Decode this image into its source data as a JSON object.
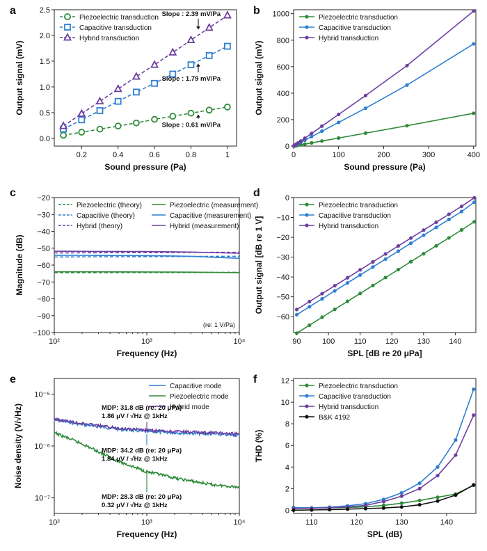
{
  "colors": {
    "piezo": "#2e8b3a",
    "cap": "#2f7fd0",
    "hybrid": "#6b3fa0",
    "bk": "#111111"
  },
  "chart_data": [
    {
      "panel": "a",
      "type": "line",
      "xlabel": "Sound pressure (Pa)",
      "ylabel": "Output signal (mV)",
      "xlim": [
        0.05,
        1.05
      ],
      "ylim": [
        -0.15,
        2.5
      ],
      "xticks": [
        0.2,
        0.4,
        0.6,
        0.8,
        1.0
      ],
      "yticks": [
        0.0,
        0.5,
        1.0,
        1.5,
        2.0,
        2.5
      ],
      "legend": "top-left",
      "series": [
        {
          "name": "Piezoelectric transduction",
          "color": "piezo",
          "marker": "circle",
          "dashed": true,
          "x": [
            0.1,
            0.2,
            0.3,
            0.4,
            0.5,
            0.6,
            0.7,
            0.8,
            0.9,
            1.0
          ],
          "y": [
            0.06,
            0.12,
            0.18,
            0.24,
            0.3,
            0.37,
            0.43,
            0.49,
            0.55,
            0.61
          ]
        },
        {
          "name": "Capacitive transduction",
          "color": "cap",
          "marker": "square",
          "dashed": true,
          "x": [
            0.1,
            0.2,
            0.3,
            0.4,
            0.5,
            0.6,
            0.7,
            0.8,
            0.9,
            1.0
          ],
          "y": [
            0.18,
            0.36,
            0.54,
            0.72,
            0.9,
            1.07,
            1.25,
            1.43,
            1.61,
            1.79
          ]
        },
        {
          "name": "Hybrid transduction",
          "color": "hybrid",
          "marker": "triangle",
          "dashed": true,
          "x": [
            0.1,
            0.2,
            0.3,
            0.4,
            0.5,
            0.6,
            0.7,
            0.8,
            0.9,
            1.0
          ],
          "y": [
            0.24,
            0.48,
            0.72,
            0.96,
            1.2,
            1.43,
            1.67,
            1.91,
            2.15,
            2.39
          ]
        }
      ],
      "annotations": [
        {
          "text": "Slope : 2.39 mV/Pa",
          "x": 0.64,
          "y": 2.38,
          "arrow_to": [
            0.84,
            2.12
          ]
        },
        {
          "text": "Slope : 1.79 mV/Pa",
          "x": 0.64,
          "y": 1.12,
          "arrow_to": [
            0.84,
            1.45
          ]
        },
        {
          "text": "Slope : 0.61 mV/Pa",
          "x": 0.64,
          "y": 0.22,
          "arrow_to": [
            0.84,
            0.46
          ]
        }
      ]
    },
    {
      "panel": "b",
      "type": "line",
      "xlabel": "Sound pressure (Pa)",
      "ylabel": "Output signal (mV)",
      "xlim": [
        0,
        405
      ],
      "ylim": [
        0,
        1030
      ],
      "xticks": [
        0,
        100,
        200,
        300,
        400
      ],
      "yticks": [
        0,
        200,
        400,
        600,
        800,
        1000
      ],
      "legend": "top-left",
      "series": [
        {
          "name": "Piezoelectric transduction",
          "color": "piezo",
          "marker": "dot",
          "x": [
            0.63,
            1,
            2,
            4,
            6.3,
            10,
            16,
            25,
            40,
            63,
            100,
            160,
            252,
            400
          ],
          "y": [
            0.38,
            0.6,
            1.2,
            2.4,
            3.9,
            6.1,
            9.8,
            15.3,
            24.4,
            38.4,
            61,
            98,
            154,
            248
          ]
        },
        {
          "name": "Capacitive transduction",
          "color": "cap",
          "marker": "dot",
          "x": [
            0.63,
            1,
            2,
            4,
            6.3,
            10,
            16,
            25,
            40,
            63,
            100,
            160,
            252,
            400
          ],
          "y": [
            1.1,
            1.8,
            3.6,
            7.2,
            11.3,
            17.9,
            28.6,
            44.8,
            71.6,
            113,
            179,
            286,
            461,
            772
          ]
        },
        {
          "name": "Hybrid transduction",
          "color": "hybrid",
          "marker": "dot",
          "x": [
            0.63,
            1,
            2,
            4,
            6.3,
            10,
            16,
            25,
            40,
            63,
            100,
            160,
            252,
            400
          ],
          "y": [
            1.5,
            2.4,
            4.8,
            9.6,
            15.1,
            23.9,
            38.2,
            59.8,
            95.6,
            151,
            239,
            382,
            608,
            1020
          ]
        }
      ]
    },
    {
      "panel": "c",
      "type": "line",
      "xlabel": "Frequency (Hz)",
      "ylabel": "Magnitude (dB)",
      "xscale": "log",
      "xlim": [
        100,
        10000
      ],
      "ylim": [
        -100,
        -20
      ],
      "xticks": [
        100,
        1000,
        10000
      ],
      "yticks": [
        -20,
        -30,
        -40,
        -50,
        -60,
        -70,
        -80,
        -90,
        -100
      ],
      "xticklabels": [
        "10²",
        "10³",
        "10⁴"
      ],
      "note": "(re: 1 V/Pa)",
      "legend": "top",
      "series": [
        {
          "name": "Piezoelectric (theory)",
          "color": "piezo",
          "dashed": true,
          "x": [
            100,
            300,
            1000,
            3000,
            10000
          ],
          "y": [
            -64.5,
            -64.5,
            -64.4,
            -64.4,
            -64.3
          ]
        },
        {
          "name": "Capacitive (theory)",
          "color": "cap",
          "dashed": true,
          "x": [
            100,
            300,
            1000,
            3000,
            10000
          ],
          "y": [
            -55.2,
            -55.1,
            -55.0,
            -54.9,
            -54.8
          ]
        },
        {
          "name": "Hybrid (theory)",
          "color": "hybrid",
          "dashed": true,
          "x": [
            100,
            300,
            1000,
            3000,
            10000
          ],
          "y": [
            -52.8,
            -52.7,
            -52.6,
            -52.5,
            -52.4
          ]
        },
        {
          "name": "Piezoelectric (measurement)",
          "color": "piezo",
          "x": [
            100,
            300,
            1000,
            3000,
            10000
          ],
          "y": [
            -64.0,
            -64.0,
            -64.1,
            -64.2,
            -64.5
          ]
        },
        {
          "name": "Capacitive (measurement)",
          "color": "cap",
          "x": [
            100,
            300,
            1000,
            3000,
            10000
          ],
          "y": [
            -54.2,
            -54.3,
            -54.4,
            -54.8,
            -56.0
          ]
        },
        {
          "name": "Hybrid (measurement)",
          "color": "hybrid",
          "x": [
            100,
            300,
            1000,
            3000,
            10000
          ],
          "y": [
            -51.8,
            -51.9,
            -52.0,
            -52.3,
            -53.0
          ]
        }
      ]
    },
    {
      "panel": "d",
      "type": "line",
      "xlabel": "SPL [dB re 20 μPa]",
      "ylabel": "Output signal [dB re 1 V]",
      "xlim": [
        89,
        146.5
      ],
      "ylim": [
        -68,
        0
      ],
      "xticks": [
        90,
        100,
        110,
        120,
        130,
        140
      ],
      "yticks": [
        0,
        -10,
        -20,
        -30,
        -40,
        -50,
        -60
      ],
      "legend": "top-left",
      "series": [
        {
          "name": "Piezoelectric transduction",
          "color": "piezo",
          "marker": "dot",
          "x": [
            90,
            94,
            98,
            102,
            106,
            110,
            114,
            118,
            122,
            126,
            130,
            134,
            138,
            142,
            146
          ],
          "y": [
            -68.3,
            -64.3,
            -60.3,
            -56.3,
            -52.3,
            -48.3,
            -44.3,
            -40.3,
            -36.3,
            -32.3,
            -28.3,
            -24.3,
            -20.3,
            -16.3,
            -12.2
          ]
        },
        {
          "name": "Capacitive transduction",
          "color": "cap",
          "marker": "dot",
          "x": [
            90,
            94,
            98,
            102,
            106,
            110,
            114,
            118,
            122,
            126,
            130,
            134,
            138,
            142,
            146
          ],
          "y": [
            -59.0,
            -55.0,
            -51.0,
            -47.0,
            -43.0,
            -39.0,
            -35.0,
            -31.0,
            -27.0,
            -23.0,
            -19.0,
            -15.0,
            -11.0,
            -7.0,
            -2.3
          ]
        },
        {
          "name": "Hybrid transduction",
          "color": "hybrid",
          "marker": "dot",
          "x": [
            90,
            94,
            98,
            102,
            106,
            110,
            114,
            118,
            122,
            126,
            130,
            134,
            138,
            142,
            146
          ],
          "y": [
            -56.4,
            -52.4,
            -48.4,
            -44.4,
            -40.4,
            -36.4,
            -32.4,
            -28.4,
            -24.4,
            -20.4,
            -16.4,
            -12.4,
            -8.4,
            -4.4,
            -0.1
          ]
        }
      ]
    },
    {
      "panel": "e",
      "type": "line",
      "xlabel": "Frequency (Hz)",
      "ylabel": "Noise density (V/√Hz)",
      "xscale": "log",
      "yscale": "log",
      "xlim": [
        100,
        10000
      ],
      "ylim": [
        5e-08,
        2e-05
      ],
      "xticks": [
        100,
        1000,
        10000
      ],
      "xticklabels": [
        "10²",
        "10³",
        "10⁴"
      ],
      "yticks": [
        1e-07,
        1e-06,
        1e-05
      ],
      "yticklabels": [
        "10⁻⁷",
        "10⁻⁶",
        "10⁻⁵"
      ],
      "legend": "top-right",
      "series": [
        {
          "name": "Capacitive mode",
          "color": "cap",
          "noisy": true,
          "x": [
            100,
            200,
            500,
            1000,
            2000,
            5000,
            10000
          ],
          "y": [
            3.2e-06,
            2.6e-06,
            2.1e-06,
            1.9e-06,
            1.8e-06,
            1.7e-06,
            1.6e-06
          ]
        },
        {
          "name": "Piezoelectric mode",
          "color": "piezo",
          "noisy": true,
          "x": [
            100,
            200,
            500,
            1000,
            2000,
            5000,
            10000
          ],
          "y": [
            1.8e-06,
            1.1e-06,
            5e-07,
            3.2e-07,
            2.4e-07,
            1.8e-07,
            1.6e-07
          ]
        },
        {
          "name": "Hybrid mode",
          "color": "hybrid",
          "noisy": true,
          "x": [
            100,
            200,
            500,
            1000,
            2000,
            5000,
            10000
          ],
          "y": [
            3.3e-06,
            2.7e-06,
            2.2e-06,
            2e-06,
            1.9e-06,
            1.8e-06,
            1.7e-06
          ]
        }
      ],
      "annotations": [
        {
          "line1": "MDP: 31.8 dB (re: 20 μPa)",
          "line2": "1.86 μV / √Hz @ 1kHz",
          "x": 200,
          "y": 5e-06
        },
        {
          "line1": "MDP: 34.2 dB (re: 20 μPa)",
          "line2": "1.84 μV / √Hz @ 1kHz",
          "x": 200,
          "y": 7.5e-07
        },
        {
          "line1": "MDP: 28.3 dB (re: 20 μPa)",
          "line2": "0.32 μV / √Hz @ 1kHz",
          "x": 200,
          "y": 9.5e-08
        }
      ]
    },
    {
      "panel": "f",
      "type": "line",
      "xlabel": "SPL (dB)",
      "ylabel": "THD (%)",
      "xlim": [
        106,
        146.5
      ],
      "ylim": [
        -0.3,
        12.2
      ],
      "xticks": [
        110,
        120,
        130,
        140
      ],
      "yticks": [
        0,
        2,
        4,
        6,
        8,
        10,
        12
      ],
      "legend": "top-left",
      "series": [
        {
          "name": "Piezoelectric transduction",
          "color": "piezo",
          "marker": "dot",
          "x": [
            106,
            110,
            114,
            118,
            122,
            126,
            130,
            134,
            138,
            142,
            146
          ],
          "y": [
            0.2,
            0.2,
            0.22,
            0.25,
            0.32,
            0.45,
            0.65,
            0.9,
            1.2,
            1.5,
            2.3
          ]
        },
        {
          "name": "Capacitive transduction",
          "color": "cap",
          "marker": "dot",
          "x": [
            106,
            110,
            114,
            118,
            122,
            126,
            130,
            134,
            138,
            142,
            146
          ],
          "y": [
            0.25,
            0.22,
            0.28,
            0.4,
            0.6,
            1.0,
            1.6,
            2.5,
            4.0,
            6.5,
            11.2
          ]
        },
        {
          "name": "Hybrid transduction",
          "color": "hybrid",
          "marker": "dot",
          "x": [
            106,
            110,
            114,
            118,
            122,
            126,
            130,
            134,
            138,
            142,
            146
          ],
          "y": [
            0.15,
            0.18,
            0.22,
            0.3,
            0.45,
            0.8,
            1.3,
            2.0,
            3.2,
            5.1,
            8.8
          ]
        },
        {
          "name": "B&K 4192",
          "color": "bk",
          "marker": "dot",
          "x": [
            106,
            110,
            114,
            118,
            122,
            126,
            130,
            134,
            138,
            142,
            146
          ],
          "y": [
            0.0,
            0.02,
            0.05,
            0.1,
            0.15,
            0.2,
            0.3,
            0.5,
            0.85,
            1.4,
            2.35
          ]
        }
      ]
    }
  ]
}
